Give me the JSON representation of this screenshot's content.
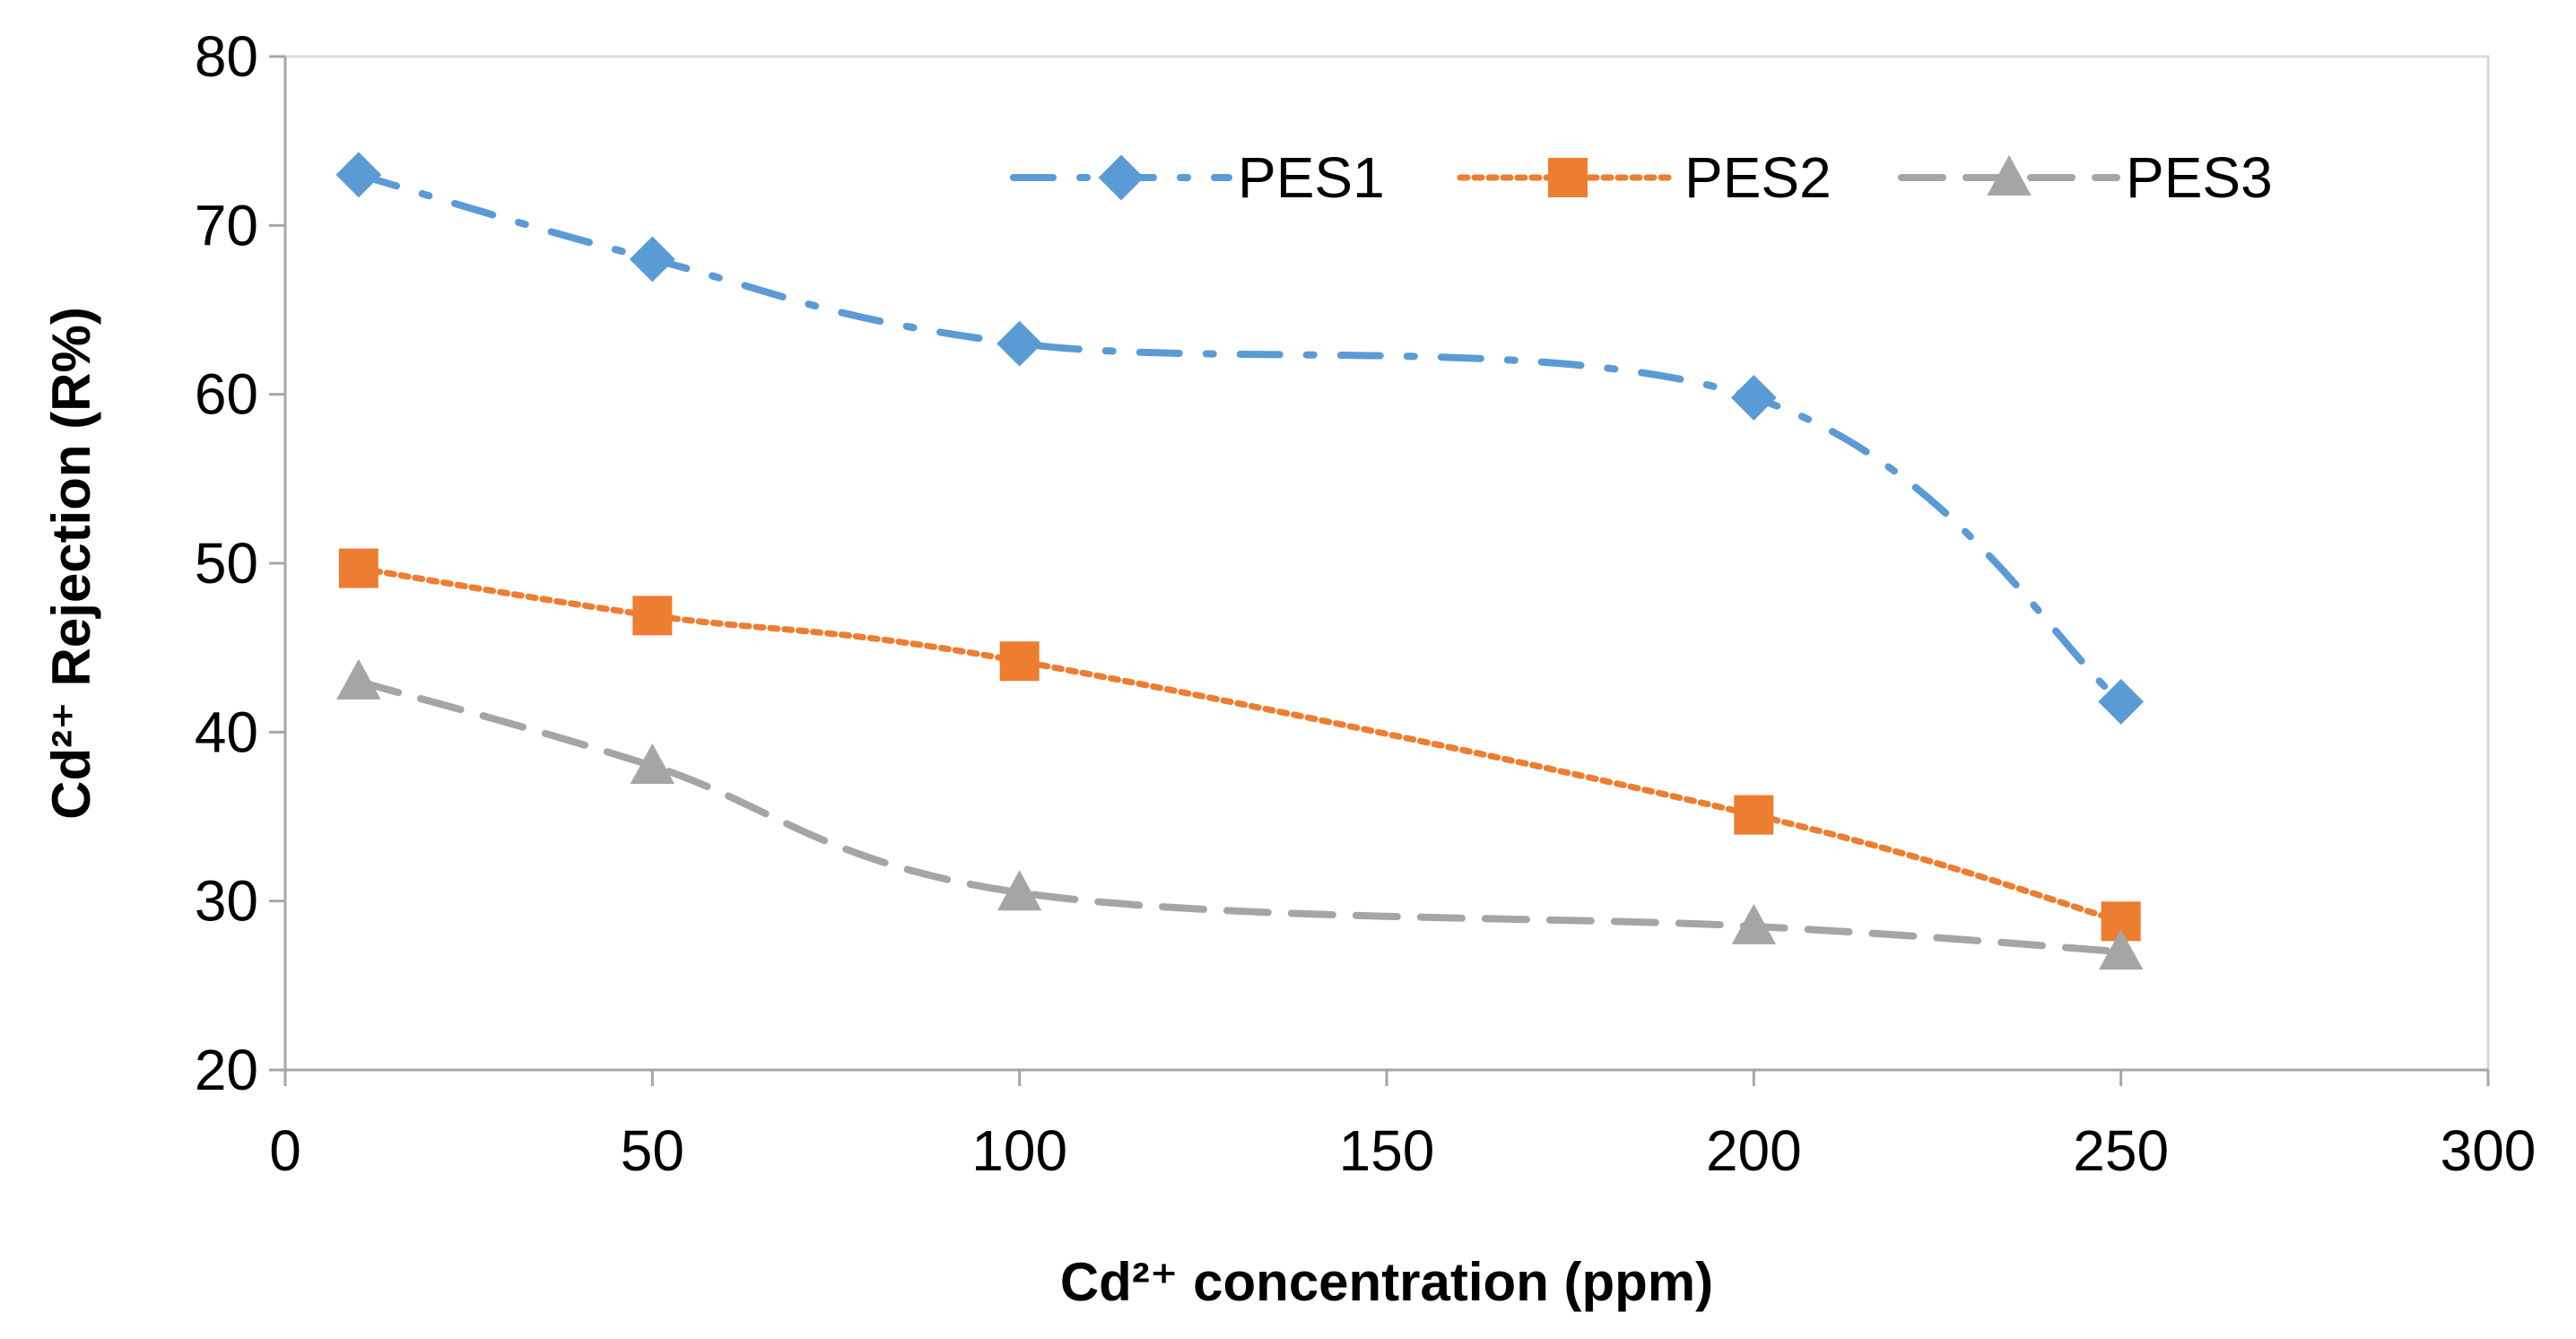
{
  "chart_data": {
    "type": "line",
    "title": "",
    "xlabel": "Cd²⁺ concentration (ppm)",
    "ylabel": "Cd²⁺ Rejection (R%)",
    "xlim": [
      0,
      300
    ],
    "ylim": [
      20,
      80
    ],
    "xticks": [
      0,
      50,
      100,
      150,
      200,
      250,
      300
    ],
    "yticks": [
      20,
      30,
      40,
      50,
      60,
      70,
      80
    ],
    "grid": false,
    "legend_position": "top-right",
    "x": [
      10,
      50,
      100,
      200,
      250
    ],
    "series": [
      {
        "name": "PES1",
        "values": [
          73,
          68,
          63,
          59.8,
          41.8
        ],
        "color": "#5B9BD5",
        "marker": "diamond",
        "line_style": "dash-dot"
      },
      {
        "name": "PES2",
        "values": [
          49.7,
          46.9,
          44.2,
          35.1,
          28.8
        ],
        "color": "#ED7D31",
        "marker": "square",
        "line_style": "dotted"
      },
      {
        "name": "PES3",
        "values": [
          43,
          38,
          30.5,
          28.5,
          27
        ],
        "color": "#A5A5A5",
        "marker": "triangle",
        "line_style": "dashed"
      }
    ]
  }
}
